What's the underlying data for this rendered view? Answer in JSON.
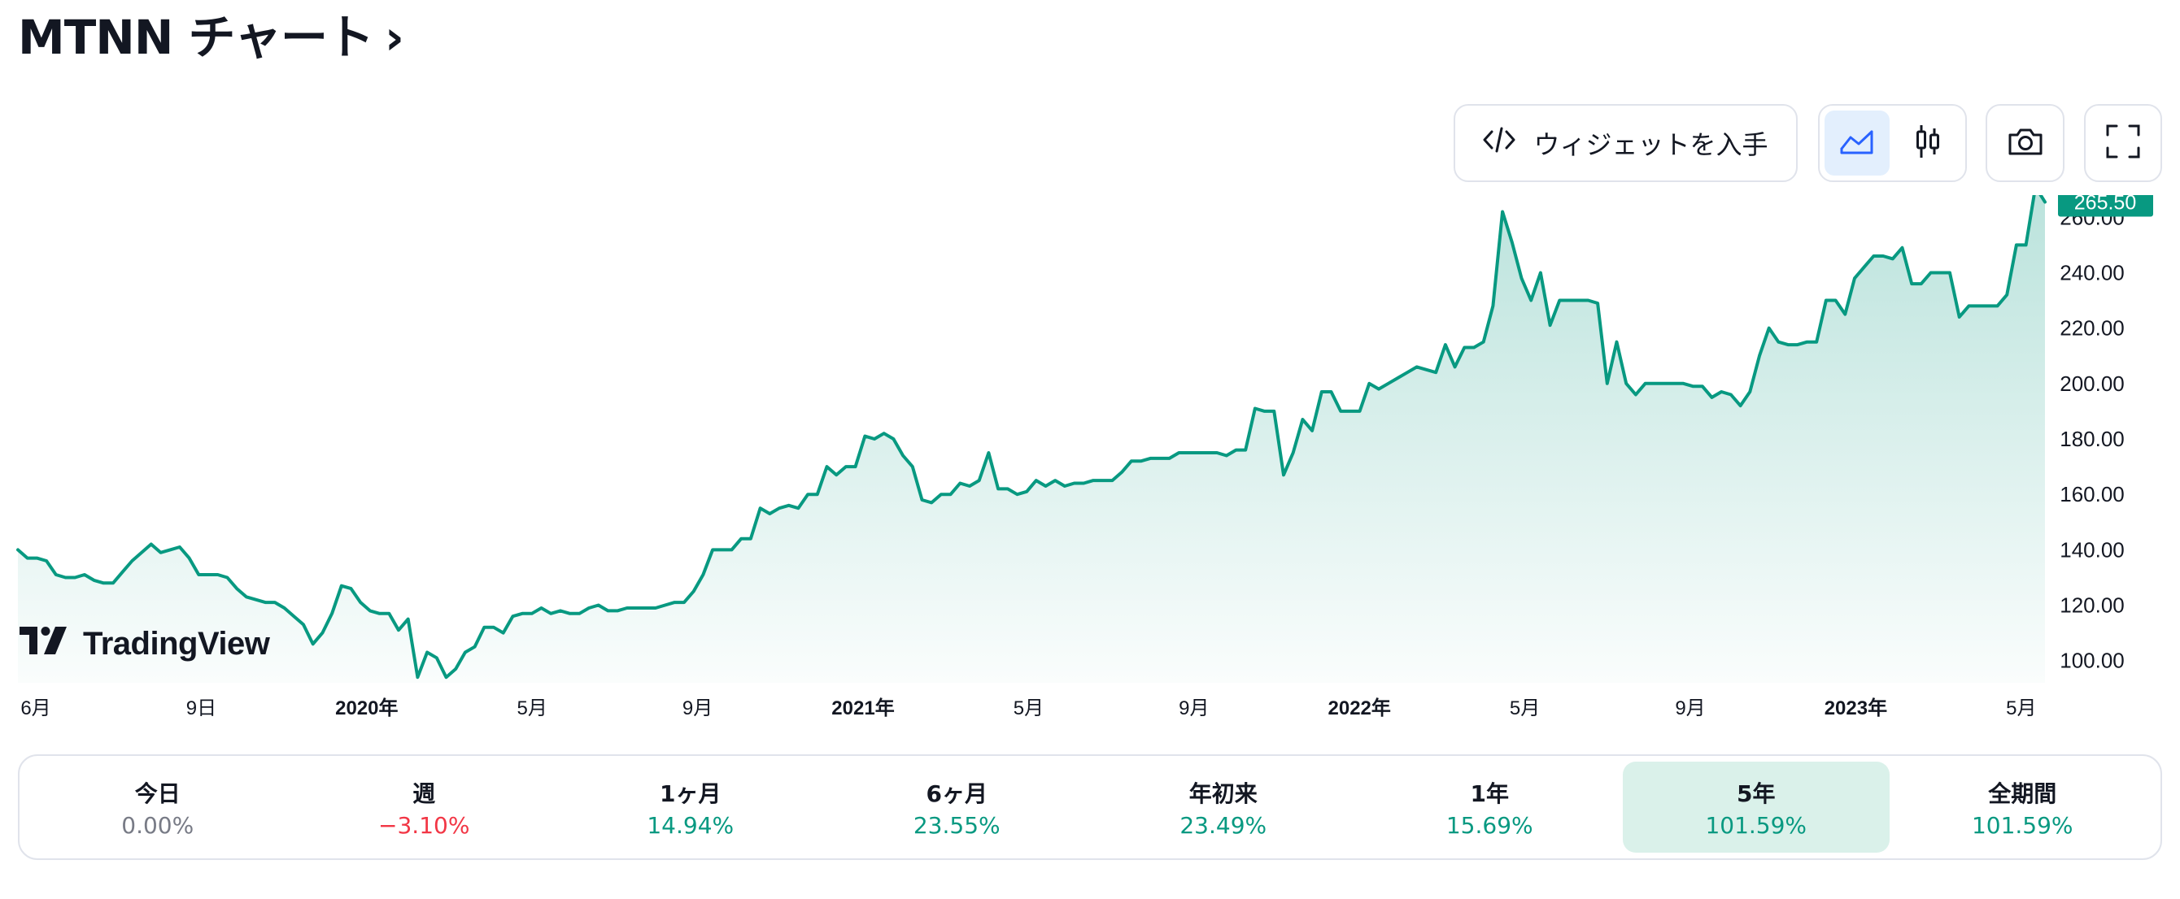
{
  "title": "MTNN チャート",
  "title_chevron": "›",
  "toolbar": {
    "widget_label": "ウィジェットを入手",
    "widget_icon": "code-icon",
    "style_buttons": [
      {
        "name": "area-chart-icon",
        "active": true
      },
      {
        "name": "candlestick-icon",
        "active": false
      }
    ],
    "snapshot_icon": "camera-icon",
    "fullscreen_icon": "fullscreen-icon"
  },
  "watermark": "TradingView",
  "colors": {
    "line": "#089981",
    "price_tag": "#089981",
    "positive": "#089981",
    "negative": "#f23645",
    "neutral": "#787b86",
    "active_range_bg": "#daf1ea",
    "active_style_bg": "#e3effd"
  },
  "chart_data": {
    "type": "area",
    "symbol": "MTNN",
    "last_price": "265.50",
    "ylim": [
      92,
      268
    ],
    "y_ticks": [
      "100.00",
      "120.00",
      "140.00",
      "160.00",
      "180.00",
      "200.00",
      "220.00",
      "240.00",
      "260.00"
    ],
    "x_ticks": [
      {
        "label": "6月",
        "bold": false
      },
      {
        "label": "9日",
        "bold": false
      },
      {
        "label": "2020年",
        "bold": true
      },
      {
        "label": "5月",
        "bold": false
      },
      {
        "label": "9月",
        "bold": false
      },
      {
        "label": "2021年",
        "bold": true
      },
      {
        "label": "5月",
        "bold": false
      },
      {
        "label": "9月",
        "bold": false
      },
      {
        "label": "2022年",
        "bold": true
      },
      {
        "label": "5月",
        "bold": false
      },
      {
        "label": "9月",
        "bold": false
      },
      {
        "label": "2023年",
        "bold": true
      },
      {
        "label": "5月",
        "bold": false
      }
    ],
    "values": [
      140,
      137,
      137,
      136,
      131,
      130,
      130,
      131,
      129,
      128,
      128,
      132,
      136,
      139,
      142,
      139,
      140,
      141,
      137,
      131,
      131,
      131,
      130,
      126,
      123,
      122,
      121,
      121,
      119,
      116,
      113,
      106,
      110,
      117,
      127,
      126,
      121,
      118,
      117,
      117,
      111,
      115,
      94,
      103,
      101,
      94,
      97,
      103,
      105,
      112,
      112,
      110,
      116,
      117,
      117,
      119,
      117,
      118,
      117,
      117,
      119,
      120,
      118,
      118,
      119,
      119,
      119,
      119,
      120,
      121,
      121,
      125,
      131,
      140,
      140,
      140,
      144,
      144,
      155,
      153,
      155,
      156,
      155,
      160,
      160,
      170,
      167,
      170,
      170,
      181,
      180,
      182,
      180,
      174,
      170,
      158,
      157,
      160,
      160,
      164,
      163,
      165,
      175,
      162,
      162,
      160,
      161,
      165,
      163,
      165,
      163,
      164,
      164,
      165,
      165,
      165,
      168,
      172,
      172,
      173,
      173,
      173,
      175,
      175,
      175,
      175,
      175,
      174,
      176,
      176,
      191,
      190,
      190,
      167,
      175,
      187,
      183,
      197,
      197,
      190,
      190,
      190,
      200,
      198,
      200,
      202,
      204,
      206,
      205,
      204,
      214,
      206,
      213,
      213,
      215,
      228,
      262,
      251,
      238,
      230,
      240,
      221,
      230,
      230,
      230,
      230,
      229,
      200,
      215,
      200,
      196,
      200,
      200,
      200,
      200,
      200,
      199,
      199,
      195,
      197,
      196,
      192,
      197,
      210,
      220,
      215,
      214,
      214,
      215,
      215,
      230,
      230,
      225,
      238,
      242,
      246,
      246,
      245,
      249,
      236,
      236,
      240,
      240,
      240,
      224,
      228,
      228,
      228,
      228,
      232,
      250,
      250,
      271,
      265.5
    ]
  },
  "performance": [
    {
      "label": "今日",
      "value": "0.00%",
      "sign": "neutral",
      "active": false
    },
    {
      "label": "週",
      "value": "−3.10%",
      "sign": "negative",
      "active": false
    },
    {
      "label": "1ヶ月",
      "value": "14.94%",
      "sign": "positive",
      "active": false
    },
    {
      "label": "6ヶ月",
      "value": "23.55%",
      "sign": "positive",
      "active": false
    },
    {
      "label": "年初来",
      "value": "23.49%",
      "sign": "positive",
      "active": false
    },
    {
      "label": "1年",
      "value": "15.69%",
      "sign": "positive",
      "active": false
    },
    {
      "label": "5年",
      "value": "101.59%",
      "sign": "positive",
      "active": true
    },
    {
      "label": "全期間",
      "value": "101.59%",
      "sign": "positive",
      "active": false
    }
  ]
}
